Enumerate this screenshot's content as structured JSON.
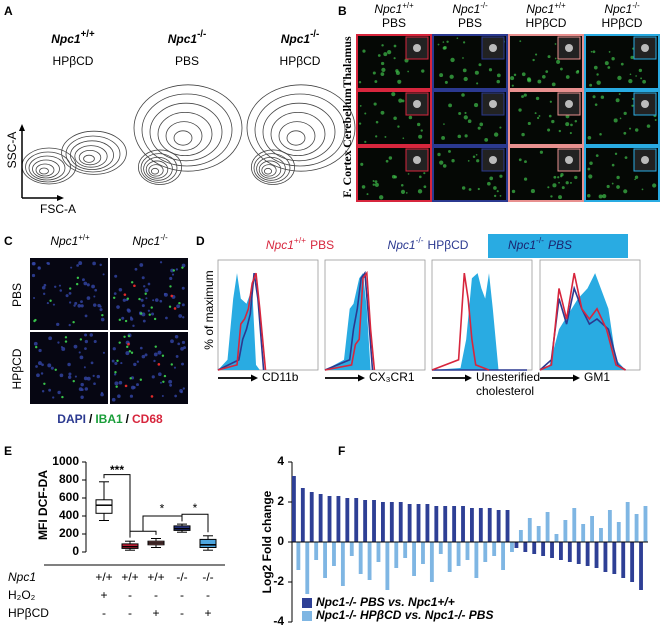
{
  "panels": {
    "A": {
      "letter": "A",
      "groups": [
        {
          "gene": "Npc1",
          "genotype": "+/+",
          "treatment": "HPβCD"
        },
        {
          "gene": "Npc1",
          "genotype": "-/-",
          "treatment": "PBS"
        },
        {
          "gene": "Npc1",
          "genotype": "-/-",
          "treatment": "HPβCD"
        }
      ],
      "y_label": "SSC-A",
      "x_label": "FSC-A"
    },
    "B": {
      "letter": "B",
      "columns": [
        {
          "gene": "Npc1",
          "genotype": "+/+",
          "treatment": "PBS",
          "color": "#d7263d"
        },
        {
          "gene": "Npc1",
          "genotype": "-/-",
          "treatment": "PBS",
          "color": "#2b3990"
        },
        {
          "gene": "Npc1",
          "genotype": "+/+",
          "treatment": "HPβCD",
          "color": "#e8908f"
        },
        {
          "gene": "Npc1",
          "genotype": "-/-",
          "treatment": "HPβCD",
          "color": "#29abe2"
        }
      ],
      "rows": [
        "Thalamus",
        "Cerebellum",
        "F. Cortex"
      ]
    },
    "C": {
      "letter": "C",
      "columns": [
        {
          "gene": "Npc1",
          "genotype": "+/+"
        },
        {
          "gene": "Npc1",
          "genotype": "-/-"
        }
      ],
      "rows": [
        "PBS",
        "HPβCD"
      ],
      "stains": [
        {
          "text": "DAPI",
          "color": "#2b3990"
        },
        {
          "text": "IBA1",
          "color": "#1a9e3a"
        },
        {
          "text": "CD68",
          "color": "#d7263d"
        }
      ],
      "separator": "/"
    },
    "D": {
      "letter": "D",
      "legend": [
        {
          "gene": "Npc1",
          "genotype": "+/+",
          "treatment": "PBS",
          "color": "#d7263d"
        },
        {
          "gene": "Npc1",
          "genotype": "-/-",
          "treatment": "HPβCD",
          "color": "#2b3990"
        },
        {
          "gene": "Npc1",
          "genotype": "-/-",
          "treatment": "PBS",
          "color": "#29abe2"
        }
      ],
      "y_label": "% of maximum",
      "x_labels": [
        [
          "CD11b"
        ],
        [
          "CX₃CR1"
        ],
        [
          "Unesterified",
          "cholesterol"
        ],
        [
          "GM1"
        ]
      ]
    },
    "E": {
      "letter": "E"
    },
    "F": {
      "letter": "F"
    }
  },
  "chart_data": [
    {
      "type": "box",
      "y_label": "MFI DCF-DA",
      "ylim": [
        0,
        1000
      ],
      "yticks": [
        0,
        200,
        400,
        600,
        800,
        1000
      ],
      "boxes": [
        {
          "min": 350,
          "q1": 430,
          "median": 520,
          "q3": 580,
          "max": 780,
          "color": "#ffffff"
        },
        {
          "min": 20,
          "q1": 40,
          "median": 60,
          "q3": 90,
          "max": 120,
          "color": "#d7263d"
        },
        {
          "min": 50,
          "q1": 80,
          "median": 100,
          "q3": 120,
          "max": 150,
          "color": "#e8908f"
        },
        {
          "min": 220,
          "q1": 240,
          "median": 260,
          "q3": 290,
          "max": 310,
          "color": "#2b3990"
        },
        {
          "min": 20,
          "q1": 50,
          "median": 80,
          "q3": 140,
          "max": 180,
          "color": "#4da6e0"
        }
      ],
      "significance": [
        "***",
        "*",
        "*"
      ],
      "table": [
        {
          "label": "Npc1",
          "values": [
            "+/+",
            "+/+",
            "+/+",
            "-/-",
            "-/-"
          ]
        },
        {
          "label": "H₂O₂",
          "values": [
            "+",
            "-",
            "-",
            "-",
            "-"
          ]
        },
        {
          "label": "HPβCD",
          "values": [
            "-",
            "-",
            "+",
            "-",
            "+"
          ]
        }
      ]
    },
    {
      "type": "bar",
      "y_label": "Log2 Fold change",
      "ylim": [
        -4,
        4
      ],
      "yticks": [
        -4,
        -2,
        0,
        2,
        4
      ],
      "categories": [
        null,
        null,
        null,
        null,
        null,
        null,
        null,
        null,
        null,
        null,
        null,
        null,
        null,
        null,
        null,
        null,
        null,
        null,
        null,
        null,
        null,
        null,
        null,
        null,
        null,
        null,
        null,
        null,
        null,
        null,
        null,
        null,
        null,
        null,
        null,
        null,
        null,
        null,
        null,
        null
      ],
      "series": [
        {
          "name": "Npc1-/- PBS vs. Npc1+/+",
          "color": "#2e3f95",
          "values": [
            3.3,
            2.7,
            2.5,
            2.4,
            2.3,
            2.3,
            2.2,
            2.2,
            2.1,
            2.1,
            2.0,
            2.0,
            2.0,
            1.9,
            1.9,
            1.9,
            1.8,
            1.8,
            1.8,
            1.8,
            1.7,
            1.7,
            1.7,
            1.6,
            1.6,
            -0.3,
            -0.5,
            -0.6,
            -0.7,
            -0.8,
            -0.9,
            -1.0,
            -1.1,
            -1.2,
            -1.3,
            -1.5,
            -1.6,
            -1.8,
            -2.0,
            -2.4
          ]
        },
        {
          "name": "Npc1-/- HPβCD vs. Npc1-/- PBS",
          "color": "#7fb6e3",
          "values": [
            -1.4,
            -2.6,
            -0.9,
            -1.8,
            -1.2,
            -2.2,
            -0.7,
            -1.6,
            -1.9,
            -1.0,
            -2.4,
            -1.3,
            -0.8,
            -1.7,
            -1.1,
            -2.0,
            -0.6,
            -1.5,
            -1.2,
            -0.9,
            -1.8,
            -1.0,
            -0.7,
            -1.4,
            -0.5,
            0.6,
            1.2,
            0.8,
            1.5,
            0.4,
            1.1,
            1.7,
            0.9,
            1.3,
            0.7,
            1.6,
            1.0,
            2.0,
            1.4,
            1.8
          ]
        }
      ]
    }
  ]
}
